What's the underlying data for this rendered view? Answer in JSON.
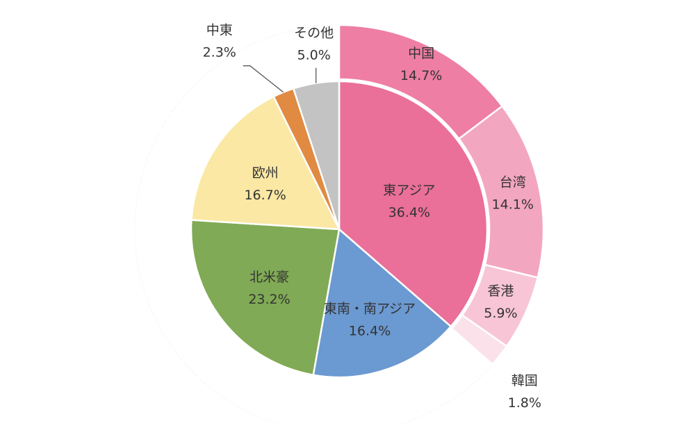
{
  "chart_data": {
    "type": "pie",
    "inner": [
      {
        "label": "東アジア",
        "value": 36.4,
        "value_text": "36.4%",
        "color": "#ea6f99"
      },
      {
        "label": "東南・南アジア",
        "value": 16.4,
        "value_text": "16.4%",
        "color": "#6b99d1"
      },
      {
        "label": "北米豪",
        "value": 23.2,
        "value_text": "23.2%",
        "color": "#80aa55"
      },
      {
        "label": "欧州",
        "value": 16.7,
        "value_text": "16.7%",
        "color": "#fae8a4"
      },
      {
        "label": "中東",
        "value": 2.3,
        "value_text": "2.3%",
        "color": "#e08a42"
      },
      {
        "label": "その他",
        "value": 5.0,
        "value_text": "5.0%",
        "color": "#c3c3c3"
      }
    ],
    "outer": [
      {
        "label": "中国",
        "value": 14.7,
        "value_text": "14.7%",
        "color": "#ee7ea4"
      },
      {
        "label": "台湾",
        "value": 14.1,
        "value_text": "14.1%",
        "color": "#f3a6c0"
      },
      {
        "label": "香港",
        "value": 5.9,
        "value_text": "5.9%",
        "color": "#f7c5d6"
      },
      {
        "label": "韓国",
        "value": 1.8,
        "value_text": "1.8%",
        "color": "#fbe2ea"
      }
    ]
  }
}
